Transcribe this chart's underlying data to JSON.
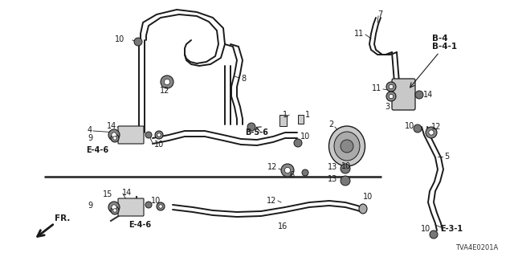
{
  "background_color": "#ffffff",
  "diagram_code": "TVA4E0201A",
  "fig_width": 6.4,
  "fig_height": 3.2,
  "dpi": 100,
  "line_color": "#1a1a1a",
  "line_width": 1.0
}
